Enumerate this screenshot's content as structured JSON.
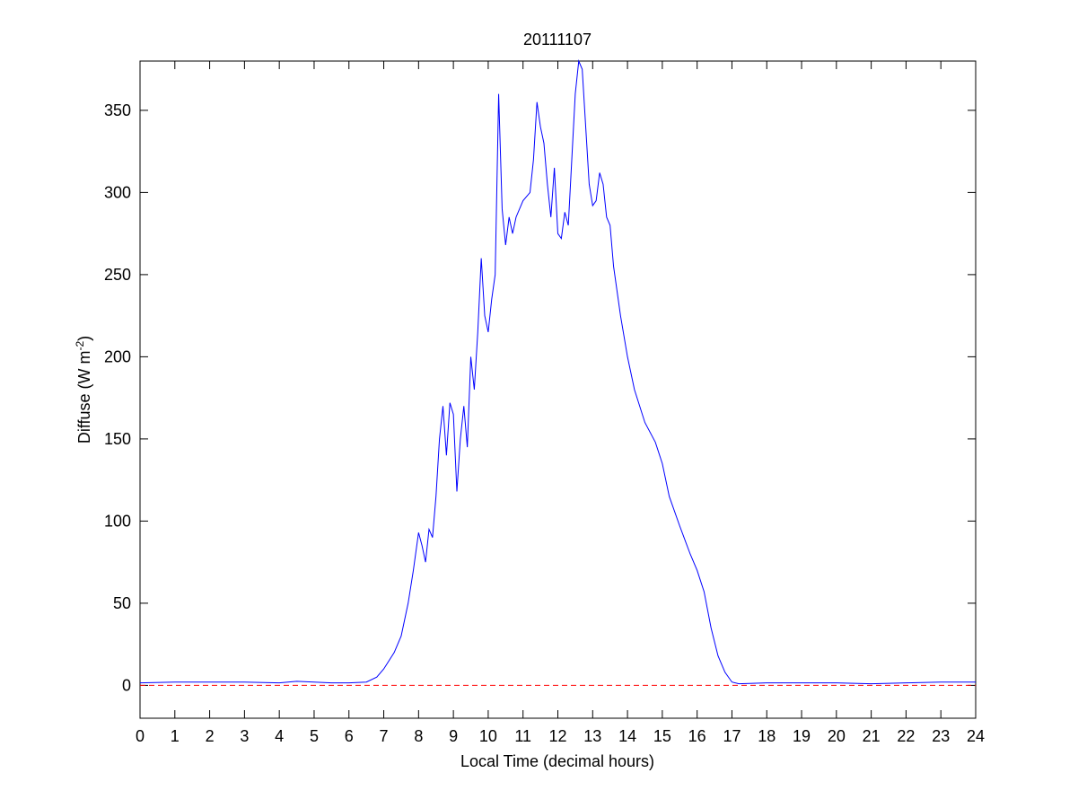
{
  "chart_data": {
    "type": "line",
    "title": "20111107",
    "xlabel": "Local Time (decimal hours)",
    "ylabel": [
      "Diffuse (W m",
      "-2",
      ")"
    ],
    "x": [
      0,
      1,
      2,
      3,
      4,
      4.5,
      5,
      5.5,
      6,
      6.5,
      6.8,
      7,
      7.3,
      7.5,
      7.7,
      7.85,
      8,
      8.1,
      8.2,
      8.3,
      8.4,
      8.5,
      8.6,
      8.7,
      8.8,
      8.9,
      9,
      9.1,
      9.2,
      9.3,
      9.4,
      9.5,
      9.6,
      9.7,
      9.8,
      9.9,
      10,
      10.1,
      10.2,
      10.3,
      10.4,
      10.5,
      10.6,
      10.7,
      10.8,
      11,
      11.2,
      11.3,
      11.4,
      11.5,
      11.6,
      11.7,
      11.8,
      11.9,
      12,
      12.1,
      12.2,
      12.3,
      12.4,
      12.5,
      12.6,
      12.7,
      12.8,
      12.9,
      13,
      13.1,
      13.2,
      13.3,
      13.4,
      13.5,
      13.6,
      13.8,
      14,
      14.2,
      14.5,
      14.8,
      15,
      15.2,
      15.5,
      15.8,
      16,
      16.2,
      16.4,
      16.6,
      16.8,
      17,
      17.2,
      18,
      19,
      20,
      21,
      22,
      23,
      24
    ],
    "series": [
      {
        "color": "#0000ff",
        "values": [
          1.5,
          2,
          2,
          2,
          1.5,
          2.5,
          2,
          1.5,
          1.5,
          2,
          5,
          10,
          20,
          30,
          50,
          70,
          93,
          85,
          75,
          95,
          90,
          115,
          150,
          170,
          140,
          172,
          165,
          118,
          150,
          170,
          145,
          200,
          180,
          215,
          260,
          225,
          215,
          235,
          250,
          360,
          290,
          268,
          285,
          275,
          285,
          295,
          300,
          320,
          355,
          340,
          330,
          305,
          285,
          315,
          275,
          272,
          288,
          280,
          320,
          360,
          380,
          375,
          340,
          305,
          292,
          295,
          312,
          305,
          285,
          280,
          255,
          225,
          200,
          180,
          160,
          148,
          135,
          115,
          97,
          80,
          70,
          57,
          35,
          18,
          8,
          2,
          1,
          1.5,
          1.5,
          1.5,
          1,
          1.5,
          2,
          2
        ]
      }
    ],
    "reference_line": {
      "value": 0,
      "color": "#ff0000",
      "style": "dashed"
    },
    "xlim": [
      0,
      24
    ],
    "xticks": [
      0,
      1,
      2,
      3,
      4,
      5,
      6,
      7,
      8,
      9,
      10,
      11,
      12,
      13,
      14,
      15,
      16,
      17,
      18,
      19,
      20,
      21,
      22,
      23,
      24
    ],
    "ylim": [
      -20,
      380
    ],
    "yticks": [
      0,
      50,
      100,
      150,
      200,
      250,
      300,
      350
    ],
    "grid": false
  }
}
